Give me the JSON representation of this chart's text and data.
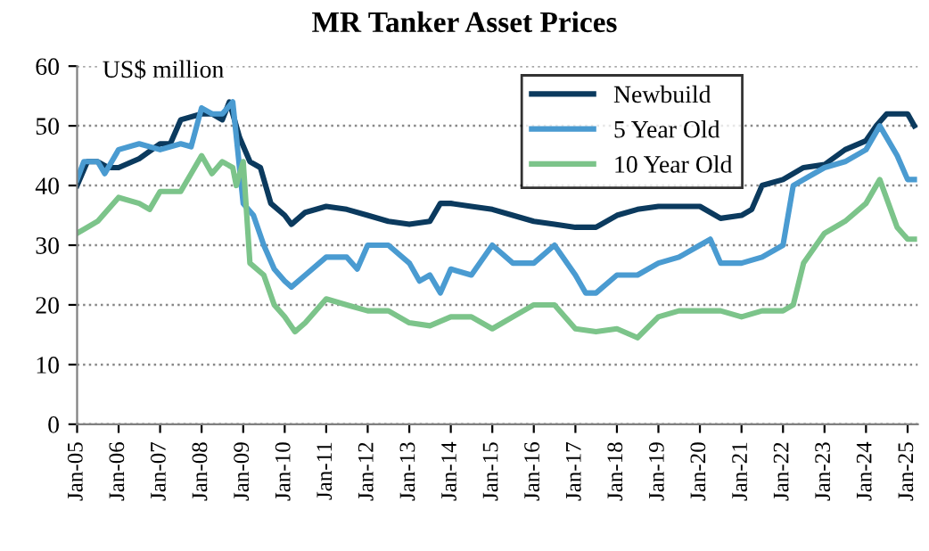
{
  "chart_data": {
    "type": "line",
    "title": "MR Tanker Asset Prices",
    "annotations": [
      "US$ million"
    ],
    "x": [
      "2005-01",
      "2005-04",
      "2005-07",
      "2005-10",
      "2006-01",
      "2006-07",
      "2007-01",
      "2007-04",
      "2007-07",
      "2008-01",
      "2008-04",
      "2008-07",
      "2008-09",
      "2008-12",
      "2009-03",
      "2009-06",
      "2009-09",
      "2010-01",
      "2010-03",
      "2010-07",
      "2011-01",
      "2011-07",
      "2012-01",
      "2012-07",
      "2013-01",
      "2013-07",
      "2013-10",
      "2014-01",
      "2014-07",
      "2015-01",
      "2015-07",
      "2016-01",
      "2016-07",
      "2017-01",
      "2017-07",
      "2018-01",
      "2018-07",
      "2019-01",
      "2019-07",
      "2020-01",
      "2020-07",
      "2021-01",
      "2021-04",
      "2021-07",
      "2022-01",
      "2022-07",
      "2023-01",
      "2023-07",
      "2024-01",
      "2024-04",
      "2024-07",
      "2025-01",
      "2025-03"
    ],
    "series": [
      {
        "name": "Newbuild",
        "color": "#0b3a5e",
        "values": [
          40,
          44,
          44,
          43,
          43,
          44.5,
          47,
          47,
          51,
          52,
          52,
          51,
          54,
          48,
          44,
          43,
          37,
          35,
          33.5,
          35.5,
          36.5,
          36,
          35,
          34,
          33.5,
          34,
          37,
          37,
          36.5,
          36,
          35,
          34,
          33.5,
          33,
          33,
          35,
          36,
          36.5,
          36.5,
          36.5,
          34.5,
          35,
          36,
          40,
          41,
          43,
          43.5,
          46,
          47.5,
          50,
          52,
          52,
          50
        ]
      },
      {
        "name": "5 Year Old",
        "color": "#4a9bd1",
        "x": [
          "2005-01",
          "2005-03",
          "2005-07",
          "2005-09",
          "2006-01",
          "2006-07",
          "2007-01",
          "2007-07",
          "2007-10",
          "2008-01",
          "2008-04",
          "2008-07",
          "2008-10",
          "2009-01",
          "2009-04",
          "2009-07",
          "2009-10",
          "2010-01",
          "2010-03",
          "2010-07",
          "2011-01",
          "2011-07",
          "2011-10",
          "2012-01",
          "2012-07",
          "2013-01",
          "2013-04",
          "2013-07",
          "2013-10",
          "2014-01",
          "2014-07",
          "2015-01",
          "2015-07",
          "2016-01",
          "2016-07",
          "2017-01",
          "2017-04",
          "2017-07",
          "2018-01",
          "2018-07",
          "2019-01",
          "2019-07",
          "2020-01",
          "2020-04",
          "2020-07",
          "2021-01",
          "2021-07",
          "2022-01",
          "2022-04",
          "2022-07",
          "2023-01",
          "2023-07",
          "2024-01",
          "2024-05",
          "2024-10",
          "2025-01",
          "2025-03"
        ],
        "values": [
          41,
          44,
          44,
          42,
          46,
          47,
          46,
          47,
          46.5,
          53,
          52,
          52,
          54,
          37,
          35,
          30,
          26,
          24,
          23,
          25,
          28,
          28,
          26,
          30,
          30,
          27,
          24,
          25,
          22,
          26,
          25,
          30,
          27,
          27,
          30,
          25,
          22,
          22,
          25,
          25,
          27,
          28,
          30,
          31,
          27,
          27,
          28,
          30,
          40,
          41,
          43,
          44,
          46,
          50,
          45,
          41,
          41
        ]
      },
      {
        "name": "10 Year Old",
        "color": "#7cc48a",
        "x": [
          "2005-01",
          "2005-07",
          "2006-01",
          "2006-07",
          "2006-10",
          "2007-01",
          "2007-07",
          "2007-10",
          "2008-01",
          "2008-04",
          "2008-07",
          "2008-10",
          "2008-11",
          "2009-01",
          "2009-03",
          "2009-07",
          "2009-10",
          "2010-01",
          "2010-04",
          "2010-07",
          "2011-01",
          "2011-07",
          "2012-01",
          "2012-07",
          "2013-01",
          "2013-07",
          "2014-01",
          "2014-07",
          "2015-01",
          "2015-07",
          "2016-01",
          "2016-07",
          "2017-01",
          "2017-07",
          "2018-01",
          "2018-07",
          "2019-01",
          "2019-07",
          "2020-01",
          "2020-07",
          "2021-01",
          "2021-07",
          "2022-01",
          "2022-04",
          "2022-07",
          "2023-01",
          "2023-07",
          "2024-01",
          "2024-05",
          "2024-10",
          "2025-01",
          "2025-03"
        ],
        "values": [
          32,
          34,
          38,
          37,
          36,
          39,
          39,
          42,
          45,
          42,
          44,
          43,
          40,
          44,
          27,
          25,
          20,
          18,
          15.5,
          17,
          21,
          20,
          19,
          19,
          17,
          16.5,
          18,
          18,
          16,
          18,
          20,
          20,
          16,
          15.5,
          16,
          14.5,
          18,
          19,
          19,
          19,
          18,
          19,
          19,
          20,
          27,
          32,
          34,
          37,
          41,
          33,
          31,
          31
        ]
      }
    ],
    "xlim": [
      "2005-01",
      "2025-04"
    ],
    "xticks": [
      {
        "value": "2005-01",
        "label": "Jan-05"
      },
      {
        "value": "2006-01",
        "label": "Jan-06"
      },
      {
        "value": "2007-01",
        "label": "Jan-07"
      },
      {
        "value": "2008-01",
        "label": "Jan-08"
      },
      {
        "value": "2009-01",
        "label": "Jan-09"
      },
      {
        "value": "2010-01",
        "label": "Jan-10"
      },
      {
        "value": "2011-01",
        "label": "Jan-11"
      },
      {
        "value": "2012-01",
        "label": "Jan-12"
      },
      {
        "value": "2013-01",
        "label": "Jan-13"
      },
      {
        "value": "2014-01",
        "label": "Jan-14"
      },
      {
        "value": "2015-01",
        "label": "Jan-15"
      },
      {
        "value": "2016-01",
        "label": "Jan-16"
      },
      {
        "value": "2017-01",
        "label": "Jan-17"
      },
      {
        "value": "2018-01",
        "label": "Jan-18"
      },
      {
        "value": "2019-01",
        "label": "Jan-19"
      },
      {
        "value": "2020-01",
        "label": "Jan-20"
      },
      {
        "value": "2021-01",
        "label": "Jan-21"
      },
      {
        "value": "2022-01",
        "label": "Jan-22"
      },
      {
        "value": "2023-01",
        "label": "Jan-23"
      },
      {
        "value": "2024-01",
        "label": "Jan-24"
      },
      {
        "value": "2025-01",
        "label": "Jan-25"
      }
    ],
    "ylim": [
      0,
      60
    ],
    "yticks": [
      0,
      10,
      20,
      30,
      40,
      50,
      60
    ],
    "grid": "y",
    "legend": "top right",
    "marker": "none",
    "line_style": "solid"
  }
}
